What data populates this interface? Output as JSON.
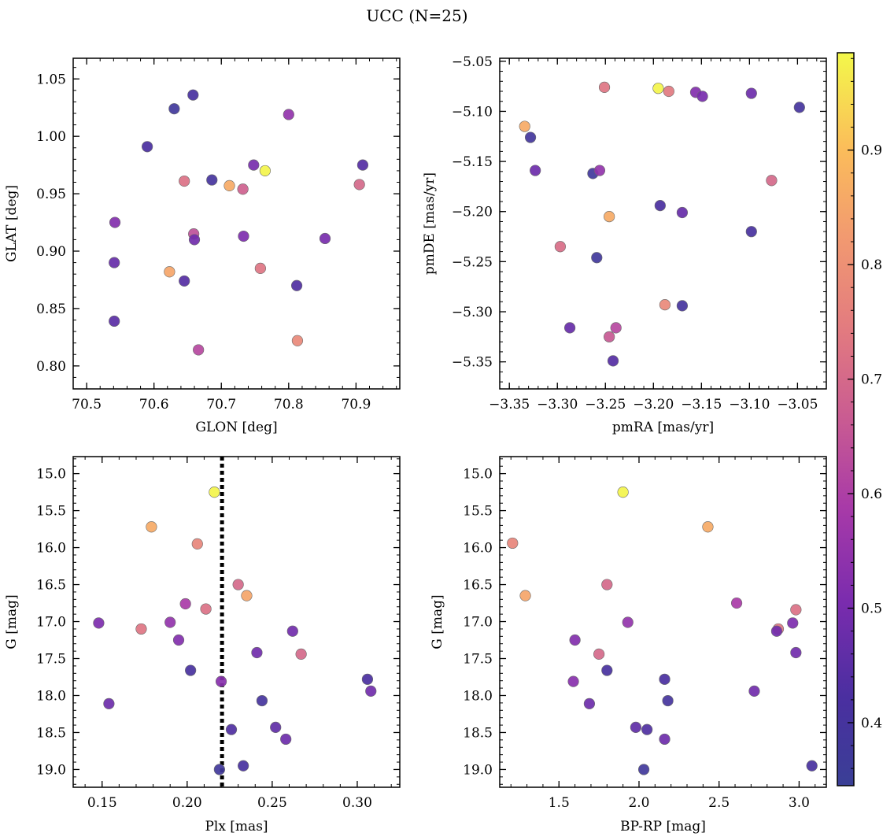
{
  "figure": {
    "title": "UCC (N=25)"
  },
  "colorbar": {
    "ticks": [
      0.4,
      0.5,
      0.6,
      0.7,
      0.8,
      0.9
    ],
    "tick_labels": [
      "0.4",
      "0.5",
      "0.6",
      "0.7",
      "0.8",
      "0.9"
    ],
    "range": [
      0.345,
      0.985
    ],
    "colormap": "plasma"
  },
  "chart_data": [
    {
      "type": "scatter",
      "xlabel": "GLON [deg]",
      "ylabel": "GLAT [deg]",
      "xlim": [
        70.48,
        70.965
      ],
      "ylim": [
        0.78,
        1.068
      ],
      "invert_y": false,
      "xticks": [
        70.5,
        70.6,
        70.7,
        70.8,
        70.9
      ],
      "xtick_labels": [
        "70.5",
        "70.6",
        "70.7",
        "70.8",
        "70.9"
      ],
      "yticks": [
        0.8,
        0.85,
        0.9,
        0.95,
        1.0,
        1.05
      ],
      "ytick_labels": [
        "0.80",
        "0.85",
        "0.90",
        "0.95",
        "1.00",
        "1.05"
      ],
      "points": [
        {
          "x": 70.63,
          "y": 1.024,
          "c": 0.38
        },
        {
          "x": 70.658,
          "y": 1.036,
          "c": 0.41
        },
        {
          "x": 70.59,
          "y": 0.991,
          "c": 0.42
        },
        {
          "x": 70.8,
          "y": 1.019,
          "c": 0.55
        },
        {
          "x": 70.748,
          "y": 0.975,
          "c": 0.5
        },
        {
          "x": 70.765,
          "y": 0.97,
          "c": 0.98
        },
        {
          "x": 70.91,
          "y": 0.975,
          "c": 0.44
        },
        {
          "x": 70.645,
          "y": 0.961,
          "c": 0.72
        },
        {
          "x": 70.686,
          "y": 0.962,
          "c": 0.4
        },
        {
          "x": 70.712,
          "y": 0.957,
          "c": 0.86
        },
        {
          "x": 70.732,
          "y": 0.954,
          "c": 0.68
        },
        {
          "x": 70.905,
          "y": 0.958,
          "c": 0.7
        },
        {
          "x": 70.542,
          "y": 0.925,
          "c": 0.52
        },
        {
          "x": 70.659,
          "y": 0.915,
          "c": 0.64
        },
        {
          "x": 70.66,
          "y": 0.91,
          "c": 0.49
        },
        {
          "x": 70.733,
          "y": 0.913,
          "c": 0.51
        },
        {
          "x": 70.854,
          "y": 0.911,
          "c": 0.5
        },
        {
          "x": 70.541,
          "y": 0.89,
          "c": 0.47
        },
        {
          "x": 70.623,
          "y": 0.882,
          "c": 0.85
        },
        {
          "x": 70.758,
          "y": 0.885,
          "c": 0.73
        },
        {
          "x": 70.645,
          "y": 0.874,
          "c": 0.44
        },
        {
          "x": 70.812,
          "y": 0.87,
          "c": 0.43
        },
        {
          "x": 70.541,
          "y": 0.839,
          "c": 0.45
        },
        {
          "x": 70.813,
          "y": 0.822,
          "c": 0.78
        },
        {
          "x": 70.666,
          "y": 0.814,
          "c": 0.62
        }
      ]
    },
    {
      "type": "scatter",
      "xlabel": "pmRA [mas/yr]",
      "ylabel": "pmDE [mas/yr]",
      "xlim": [
        -3.36,
        -3.02
      ],
      "ylim": [
        -5.377,
        -5.047
      ],
      "invert_y": false,
      "xticks": [
        -3.35,
        -3.3,
        -3.25,
        -3.2,
        -3.15,
        -3.1,
        -3.05
      ],
      "xtick_labels": [
        "−3.35",
        "−3.30",
        "−3.25",
        "−3.20",
        "−3.15",
        "−3.10",
        "−3.05"
      ],
      "yticks": [
        -5.35,
        -5.3,
        -5.25,
        -5.2,
        -5.15,
        -5.1,
        -5.05
      ],
      "ytick_labels": [
        "−5.35",
        "−5.30",
        "−5.25",
        "−5.20",
        "−5.15",
        "−5.10",
        "−5.05"
      ],
      "points": [
        {
          "x": -3.251,
          "y": -5.076,
          "c": 0.73
        },
        {
          "x": -3.195,
          "y": -5.077,
          "c": 0.98
        },
        {
          "x": -3.184,
          "y": -5.08,
          "c": 0.74
        },
        {
          "x": -3.156,
          "y": -5.081,
          "c": 0.52
        },
        {
          "x": -3.149,
          "y": -5.085,
          "c": 0.5
        },
        {
          "x": -3.098,
          "y": -5.082,
          "c": 0.48
        },
        {
          "x": -3.048,
          "y": -5.096,
          "c": 0.4
        },
        {
          "x": -3.334,
          "y": -5.115,
          "c": 0.86
        },
        {
          "x": -3.328,
          "y": -5.126,
          "c": 0.39
        },
        {
          "x": -3.323,
          "y": -5.159,
          "c": 0.48
        },
        {
          "x": -3.263,
          "y": -5.162,
          "c": 0.38
        },
        {
          "x": -3.256,
          "y": -5.159,
          "c": 0.55
        },
        {
          "x": -3.077,
          "y": -5.169,
          "c": 0.7
        },
        {
          "x": -3.193,
          "y": -5.194,
          "c": 0.42
        },
        {
          "x": -3.17,
          "y": -5.201,
          "c": 0.47
        },
        {
          "x": -3.246,
          "y": -5.205,
          "c": 0.86
        },
        {
          "x": -3.098,
          "y": -5.22,
          "c": 0.41
        },
        {
          "x": -3.297,
          "y": -5.235,
          "c": 0.71
        },
        {
          "x": -3.259,
          "y": -5.246,
          "c": 0.38
        },
        {
          "x": -3.188,
          "y": -5.293,
          "c": 0.78
        },
        {
          "x": -3.17,
          "y": -5.294,
          "c": 0.4
        },
        {
          "x": -3.287,
          "y": -5.316,
          "c": 0.47
        },
        {
          "x": -3.239,
          "y": -5.316,
          "c": 0.62
        },
        {
          "x": -3.246,
          "y": -5.325,
          "c": 0.66
        },
        {
          "x": -3.242,
          "y": -5.349,
          "c": 0.44
        }
      ]
    },
    {
      "type": "scatter",
      "xlabel": "Plx [mas]",
      "ylabel": "G [mag]",
      "xlim": [
        0.133,
        0.325
      ],
      "ylim": [
        14.77,
        19.24
      ],
      "invert_y": true,
      "vline": {
        "x": 0.2205,
        "style": "dotted"
      },
      "xticks": [
        0.15,
        0.2,
        0.25,
        0.3
      ],
      "xtick_labels": [
        "0.15",
        "0.20",
        "0.25",
        "0.30"
      ],
      "yticks": [
        15.0,
        15.5,
        16.0,
        16.5,
        17.0,
        17.5,
        18.0,
        18.5,
        19.0
      ],
      "ytick_labels": [
        "15.0",
        "15.5",
        "16.0",
        "16.5",
        "17.0",
        "17.5",
        "18.0",
        "18.5",
        "19.0"
      ],
      "points": [
        {
          "x": 0.216,
          "y": 15.25,
          "c": 0.98
        },
        {
          "x": 0.179,
          "y": 15.72,
          "c": 0.86
        },
        {
          "x": 0.206,
          "y": 15.95,
          "c": 0.77
        },
        {
          "x": 0.23,
          "y": 16.5,
          "c": 0.7
        },
        {
          "x": 0.235,
          "y": 16.65,
          "c": 0.85
        },
        {
          "x": 0.199,
          "y": 16.76,
          "c": 0.59
        },
        {
          "x": 0.211,
          "y": 16.83,
          "c": 0.72
        },
        {
          "x": 0.148,
          "y": 17.02,
          "c": 0.51
        },
        {
          "x": 0.19,
          "y": 17.01,
          "c": 0.55
        },
        {
          "x": 0.173,
          "y": 17.1,
          "c": 0.73
        },
        {
          "x": 0.262,
          "y": 17.13,
          "c": 0.49
        },
        {
          "x": 0.195,
          "y": 17.25,
          "c": 0.52
        },
        {
          "x": 0.241,
          "y": 17.42,
          "c": 0.49
        },
        {
          "x": 0.267,
          "y": 17.44,
          "c": 0.7
        },
        {
          "x": 0.202,
          "y": 17.66,
          "c": 0.41
        },
        {
          "x": 0.306,
          "y": 17.78,
          "c": 0.42
        },
        {
          "x": 0.22,
          "y": 17.81,
          "c": 0.53
        },
        {
          "x": 0.308,
          "y": 17.94,
          "c": 0.49
        },
        {
          "x": 0.244,
          "y": 18.07,
          "c": 0.4
        },
        {
          "x": 0.154,
          "y": 18.11,
          "c": 0.48
        },
        {
          "x": 0.252,
          "y": 18.43,
          "c": 0.46
        },
        {
          "x": 0.226,
          "y": 18.46,
          "c": 0.43
        },
        {
          "x": 0.258,
          "y": 18.59,
          "c": 0.48
        },
        {
          "x": 0.233,
          "y": 18.95,
          "c": 0.41
        },
        {
          "x": 0.219,
          "y": 19.0,
          "c": 0.38
        }
      ]
    },
    {
      "type": "scatter",
      "xlabel": "BP-RP [mag]",
      "ylabel": "G [mag]",
      "xlim": [
        1.13,
        3.17
      ],
      "ylim": [
        14.77,
        19.24
      ],
      "invert_y": true,
      "xticks": [
        1.5,
        2.0,
        2.5,
        3.0
      ],
      "xtick_labels": [
        "1.5",
        "2.0",
        "2.5",
        "3.0"
      ],
      "yticks": [
        15.0,
        15.5,
        16.0,
        16.5,
        17.0,
        17.5,
        18.0,
        18.5,
        19.0
      ],
      "ytick_labels": [
        "15.0",
        "15.5",
        "16.0",
        "16.5",
        "17.0",
        "17.5",
        "18.0",
        "18.5",
        "19.0"
      ],
      "points": [
        {
          "x": 1.9,
          "y": 15.25,
          "c": 0.98
        },
        {
          "x": 2.43,
          "y": 15.72,
          "c": 0.86
        },
        {
          "x": 1.21,
          "y": 15.94,
          "c": 0.77
        },
        {
          "x": 1.8,
          "y": 16.5,
          "c": 0.7
        },
        {
          "x": 1.29,
          "y": 16.65,
          "c": 0.85
        },
        {
          "x": 2.61,
          "y": 16.75,
          "c": 0.59
        },
        {
          "x": 2.98,
          "y": 16.84,
          "c": 0.72
        },
        {
          "x": 1.93,
          "y": 17.01,
          "c": 0.55
        },
        {
          "x": 2.96,
          "y": 17.02,
          "c": 0.51
        },
        {
          "x": 2.87,
          "y": 17.1,
          "c": 0.73
        },
        {
          "x": 2.86,
          "y": 17.13,
          "c": 0.49
        },
        {
          "x": 1.6,
          "y": 17.25,
          "c": 0.52
        },
        {
          "x": 1.75,
          "y": 17.44,
          "c": 0.7
        },
        {
          "x": 2.98,
          "y": 17.42,
          "c": 0.49
        },
        {
          "x": 1.8,
          "y": 17.66,
          "c": 0.41
        },
        {
          "x": 2.16,
          "y": 17.78,
          "c": 0.42
        },
        {
          "x": 1.59,
          "y": 17.81,
          "c": 0.53
        },
        {
          "x": 2.72,
          "y": 17.94,
          "c": 0.49
        },
        {
          "x": 2.18,
          "y": 18.07,
          "c": 0.4
        },
        {
          "x": 1.69,
          "y": 18.11,
          "c": 0.48
        },
        {
          "x": 1.98,
          "y": 18.43,
          "c": 0.46
        },
        {
          "x": 2.05,
          "y": 18.46,
          "c": 0.43
        },
        {
          "x": 2.16,
          "y": 18.59,
          "c": 0.48
        },
        {
          "x": 3.08,
          "y": 18.95,
          "c": 0.41
        },
        {
          "x": 2.03,
          "y": 19.0,
          "c": 0.38
        }
      ]
    }
  ]
}
